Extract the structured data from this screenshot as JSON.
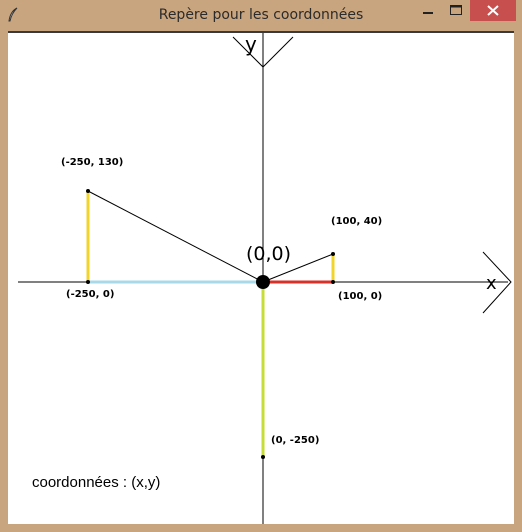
{
  "window": {
    "title": "Repère pour les coordonnées",
    "icon": "feather-icon",
    "controls": [
      "minimize-icon",
      "maximize-icon",
      "close-icon"
    ]
  },
  "canvas": {
    "axis_x_label": "x",
    "axis_y_label": "y",
    "origin_label": "(0,0)",
    "coords_text": "coordonnées : (x,y)",
    "points": [
      {
        "id": "p1",
        "label": "(-250, 130)",
        "x": -250,
        "y": 130
      },
      {
        "id": "p2",
        "label": "(-250, 0)",
        "x": -250,
        "y": 0
      },
      {
        "id": "p3",
        "label": "(100, 40)",
        "x": 100,
        "y": 40
      },
      {
        "id": "p4",
        "label": "(100, 0)",
        "x": 100,
        "y": 0
      },
      {
        "id": "p5",
        "label": "(0, -250)",
        "x": 0,
        "y": -250
      }
    ],
    "colors": {
      "segment_x_negative": "#a9d8e8",
      "segment_x_positive": "#d9302a",
      "segment_y_vertical": "#f2d52a",
      "segment_y_negative": "#c6dd35",
      "axis": "#000000",
      "origin": "#000000"
    }
  }
}
